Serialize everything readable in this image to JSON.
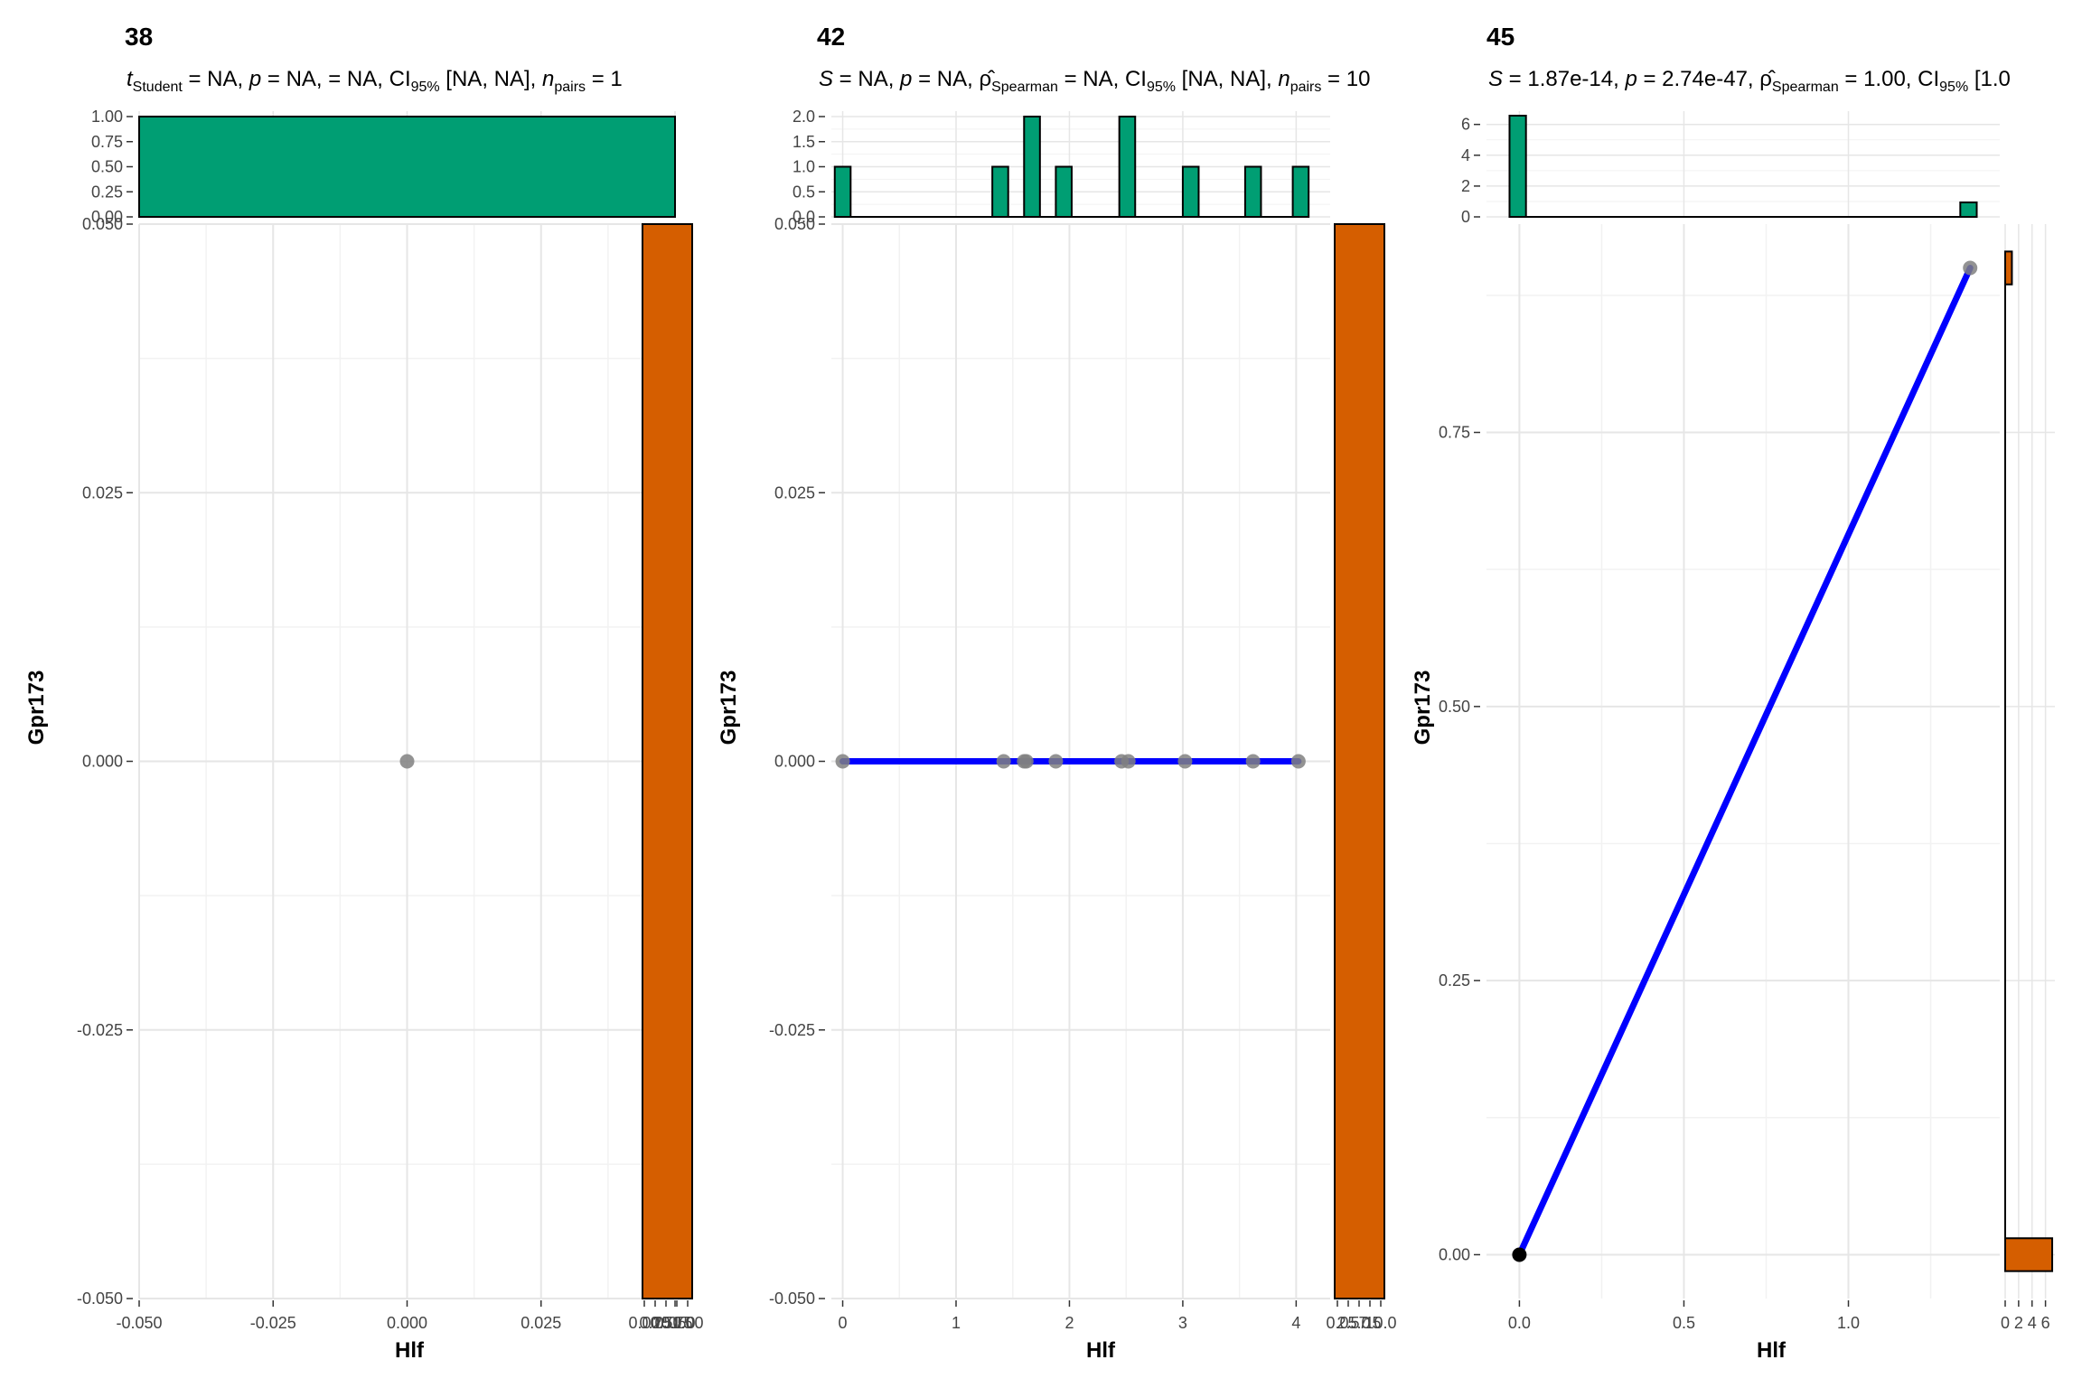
{
  "chart_data": [
    {
      "type": "scatter",
      "title": "38",
      "subtitle_parts": [
        "t",
        "Student",
        " = NA, ",
        "p",
        " = NA,  = NA, CI",
        "95%",
        " [NA, NA], ",
        "n",
        "pairs",
        " = 1"
      ],
      "xlabel": "Hlf",
      "ylabel": "Gpr173",
      "xlim": [
        -0.05,
        0.05
      ],
      "ylim": [
        -0.05,
        0.05
      ],
      "x_ticks": [
        "-0.050",
        "-0.025",
        "0.000",
        "0.025",
        "0.050"
      ],
      "y_ticks": [
        "-0.050",
        "-0.025",
        "0.000",
        "0.025",
        "0.050"
      ],
      "points": [
        {
          "x": 0.0,
          "y": 0.0
        }
      ],
      "fit_line": null,
      "top_histogram": {
        "y_ticks": [
          "0.00",
          "0.25",
          "0.50",
          "0.75",
          "1.00"
        ],
        "bins": [
          {
            "x0": -0.05,
            "x1": 0.05,
            "count": 1
          }
        ]
      },
      "right_histogram": {
        "x_ticks_overlapping": [
          "0.00",
          "0.25",
          "0.50",
          "0.75",
          "1.00"
        ],
        "bins": [
          {
            "y0": -0.05,
            "y1": 0.05,
            "count": 1
          }
        ]
      },
      "colors": {
        "points": "#808080",
        "top_hist": "#009E73",
        "right_hist": "#D55E00"
      }
    },
    {
      "type": "scatter",
      "title": "42",
      "subtitle_parts": [
        "S",
        " = NA, ",
        "p",
        " = NA, ",
        "ρ̂",
        "Spearman",
        " = NA, CI",
        "95%",
        " [NA, NA], ",
        "n",
        "pairs",
        " = 10"
      ],
      "xlabel": "Hlf",
      "ylabel": "Gpr173",
      "xlim": [
        -0.1,
        4.3
      ],
      "ylim": [
        -0.05,
        0.05
      ],
      "x_ticks": [
        "0",
        "1",
        "2",
        "3",
        "4"
      ],
      "y_ticks": [
        "-0.050",
        "-0.025",
        "0.000",
        "0.025",
        "0.050"
      ],
      "points": [
        {
          "x": 0.0,
          "y": 0.0
        },
        {
          "x": 1.42,
          "y": 0.0
        },
        {
          "x": 1.6,
          "y": 0.0
        },
        {
          "x": 1.62,
          "y": 0.0
        },
        {
          "x": 1.88,
          "y": 0.0
        },
        {
          "x": 2.46,
          "y": 0.0
        },
        {
          "x": 2.52,
          "y": 0.0
        },
        {
          "x": 3.02,
          "y": 0.0
        },
        {
          "x": 3.62,
          "y": 0.0
        },
        {
          "x": 4.02,
          "y": 0.0
        }
      ],
      "fit_line": {
        "x": [
          0.0,
          4.02
        ],
        "y": [
          0.0,
          0.0
        ]
      },
      "top_histogram": {
        "y_ticks": [
          "0.0",
          "0.5",
          "1.0",
          "1.5",
          "2.0"
        ],
        "bins": [
          {
            "x0": -0.07,
            "x1": 0.07,
            "count": 1
          },
          {
            "x0": 1.32,
            "x1": 1.46,
            "count": 1
          },
          {
            "x0": 1.6,
            "x1": 1.74,
            "count": 2
          },
          {
            "x0": 1.88,
            "x1": 2.02,
            "count": 1
          },
          {
            "x0": 2.44,
            "x1": 2.58,
            "count": 2
          },
          {
            "x0": 3.0,
            "x1": 3.14,
            "count": 1
          },
          {
            "x0": 3.55,
            "x1": 3.69,
            "count": 1
          },
          {
            "x0": 3.97,
            "x1": 4.11,
            "count": 1
          }
        ]
      },
      "right_histogram": {
        "x_ticks_overlapping": [
          "0.0",
          "2.5",
          "5.0",
          "7.5",
          "10.0"
        ],
        "bins": [
          {
            "y0": -0.05,
            "y1": 0.05,
            "count": 10
          }
        ]
      },
      "colors": {
        "points": "#808080",
        "fit_line": "#0000FF",
        "top_hist": "#009E73",
        "right_hist": "#D55E00"
      }
    },
    {
      "type": "scatter",
      "title": "45",
      "subtitle_parts": [
        "S",
        " = 1.87e-14, ",
        "p",
        " = 2.74e-47, ",
        "ρ̂",
        "Spearman",
        " = 1.00, CI",
        "95%",
        " [1.0"
      ],
      "xlabel": "Hlf",
      "ylabel": "Gpr173",
      "xlim": [
        -0.1,
        1.46
      ],
      "ylim": [
        -0.04,
        0.94
      ],
      "x_ticks": [
        "0.0",
        "0.5",
        "1.0"
      ],
      "y_ticks": [
        "0.00",
        "0.25",
        "0.50",
        "0.75"
      ],
      "points": [
        {
          "x": 0.0,
          "y": 0.0
        },
        {
          "x": 1.37,
          "y": 0.9
        }
      ],
      "fit_line": {
        "x": [
          0.0,
          1.37
        ],
        "y": [
          0.0,
          0.9
        ]
      },
      "top_histogram": {
        "y_ticks": [
          "0",
          "2",
          "4",
          "6"
        ],
        "bins": [
          {
            "x0": -0.03,
            "x1": 0.02,
            "count": 7
          },
          {
            "x0": 1.34,
            "x1": 1.39,
            "count": 1
          }
        ]
      },
      "right_histogram": {
        "x_ticks": [
          "0",
          "2",
          "4",
          "6"
        ],
        "bins": [
          {
            "y0": -0.015,
            "y1": 0.015,
            "count": 7
          },
          {
            "y0": 0.885,
            "y1": 0.915,
            "count": 1
          }
        ]
      },
      "colors": {
        "points": "#808080",
        "fit_line": "#0000FF",
        "top_hist": "#009E73",
        "right_hist": "#D55E00"
      }
    }
  ]
}
